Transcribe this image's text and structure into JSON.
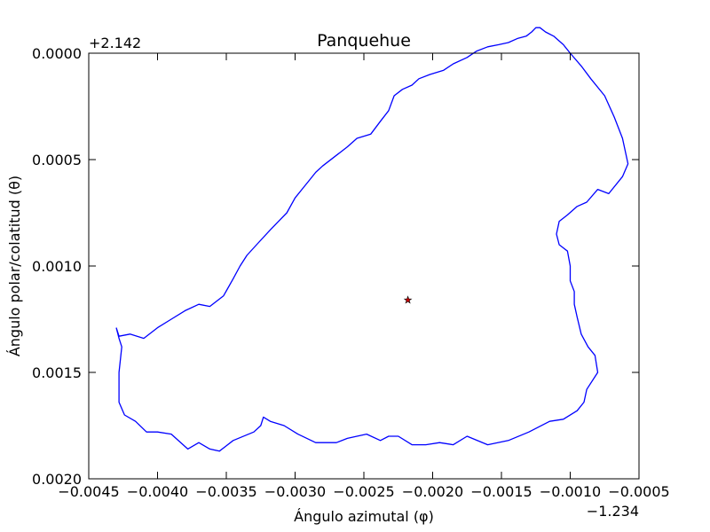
{
  "chart_data": {
    "type": "line",
    "title": "Panquehue",
    "xlabel": "Ángulo azimutal (φ)",
    "ylabel": "Ángulo polar/colatitud (θ)",
    "x_offset_label": "−1.234",
    "y_offset_label": "+2.142",
    "xlim": [
      -0.0045,
      -0.0005
    ],
    "ylim": [
      0.002,
      0.0
    ],
    "x_ticks": [
      -0.0045,
      -0.004,
      -0.0035,
      -0.003,
      -0.0025,
      -0.002,
      -0.0015,
      -0.001,
      -0.0005
    ],
    "x_tick_labels": [
      "−0.0045",
      "−0.0040",
      "−0.0035",
      "−0.0030",
      "−0.0025",
      "−0.0020",
      "−0.0015",
      "−0.0010",
      "−0.0005"
    ],
    "y_ticks": [
      0.0,
      0.0005,
      0.001,
      0.0015,
      0.002
    ],
    "y_tick_labels": [
      "0.0000",
      "0.0005",
      "0.0010",
      "0.0015",
      "0.0020"
    ],
    "grid": false,
    "colors": {
      "boundary": "#0000ff",
      "marker_fill": "#cc0000",
      "marker_edge": "#000000"
    },
    "series": [
      {
        "type": "line",
        "x": [
          -0.0043,
          -0.00428,
          -0.0042,
          -0.0041,
          -0.004,
          -0.0039,
          -0.0038,
          -0.0037,
          -0.00362,
          -0.00352,
          -0.00345,
          -0.0034,
          -0.00335,
          -0.00328,
          -0.00318,
          -0.00312,
          -0.00306,
          -0.003,
          -0.00295,
          -0.0029,
          -0.00285,
          -0.0028,
          -0.0027,
          -0.00262,
          -0.00255,
          -0.00245,
          -0.00238,
          -0.00232,
          -0.00228,
          -0.00222,
          -0.00215,
          -0.0021,
          -0.00202,
          -0.00192,
          -0.00185,
          -0.00175,
          -0.00168,
          -0.0016,
          -0.00152,
          -0.00145,
          -0.00138,
          -0.00132,
          -0.00128,
          -0.00125,
          -0.00122,
          -0.00118,
          -0.00112,
          -0.00105,
          -0.001,
          -0.00092,
          -0.00085,
          -0.00075,
          -0.00068,
          -0.00062,
          -0.00058,
          -0.00062,
          -0.00072,
          -0.0008,
          -0.00088,
          -0.00095,
          -0.00102,
          -0.00108,
          -0.0011,
          -0.00108,
          -0.00102,
          -0.001,
          -0.001,
          -0.00097,
          -0.00097,
          -0.00095,
          -0.00092,
          -0.00087,
          -0.00082,
          -0.0008,
          -0.00088,
          -0.0009,
          -0.00095,
          -0.00105,
          -0.00115,
          -0.0013,
          -0.00145,
          -0.0016,
          -0.00175,
          -0.00185,
          -0.00195,
          -0.00205,
          -0.00215,
          -0.00225,
          -0.00232,
          -0.00238,
          -0.00248,
          -0.00255,
          -0.00262,
          -0.0027,
          -0.00285,
          -0.00298,
          -0.00308,
          -0.00318,
          -0.00323,
          -0.00325,
          -0.0033,
          -0.00345,
          -0.00355,
          -0.00362,
          -0.0037,
          -0.00378,
          -0.0039,
          -0.004,
          -0.00408,
          -0.00416,
          -0.00424,
          -0.00428,
          -0.00428,
          -0.00426,
          -0.00428,
          -0.0043
        ],
        "y": [
          0.00129,
          0.00133,
          0.00132,
          0.00134,
          0.00129,
          0.00125,
          0.00121,
          0.00118,
          0.00119,
          0.00114,
          0.00106,
          0.001,
          0.00095,
          0.0009,
          0.00083,
          0.00079,
          0.00075,
          0.00068,
          0.00064,
          0.0006,
          0.00056,
          0.00053,
          0.00048,
          0.00044,
          0.0004,
          0.00038,
          0.00032,
          0.00027,
          0.0002,
          0.00017,
          0.00015,
          0.00012,
          0.0001,
          8e-05,
          5e-05,
          2e-05,
          -1e-05,
          -3e-05,
          -4e-05,
          -5e-05,
          -7e-05,
          -8e-05,
          -0.0001,
          -0.00012,
          -0.00012,
          -0.0001,
          -8e-05,
          -4e-05,
          0.0,
          6e-05,
          0.00012,
          0.0002,
          0.0003,
          0.0004,
          0.00052,
          0.00058,
          0.00066,
          0.00064,
          0.0007,
          0.00072,
          0.00076,
          0.00079,
          0.00085,
          0.0009,
          0.00093,
          0.001,
          0.00107,
          0.00112,
          0.00118,
          0.00124,
          0.00132,
          0.00138,
          0.00142,
          0.0015,
          0.00158,
          0.00164,
          0.00168,
          0.00172,
          0.00173,
          0.00178,
          0.00182,
          0.00184,
          0.0018,
          0.00184,
          0.00183,
          0.00184,
          0.00184,
          0.0018,
          0.0018,
          0.00182,
          0.00179,
          0.0018,
          0.00181,
          0.00183,
          0.00183,
          0.00179,
          0.00175,
          0.00173,
          0.00171,
          0.00175,
          0.00178,
          0.00182,
          0.00187,
          0.00186,
          0.00183,
          0.00186,
          0.00179,
          0.00178,
          0.00178,
          0.00173,
          0.0017,
          0.00164,
          0.0015,
          0.00138,
          0.00134,
          0.00129
        ],
        "name": ""
      },
      {
        "type": "scatter",
        "marker": "star",
        "x": [
          -0.00218
        ],
        "y": [
          0.00116
        ],
        "name": ""
      }
    ]
  }
}
